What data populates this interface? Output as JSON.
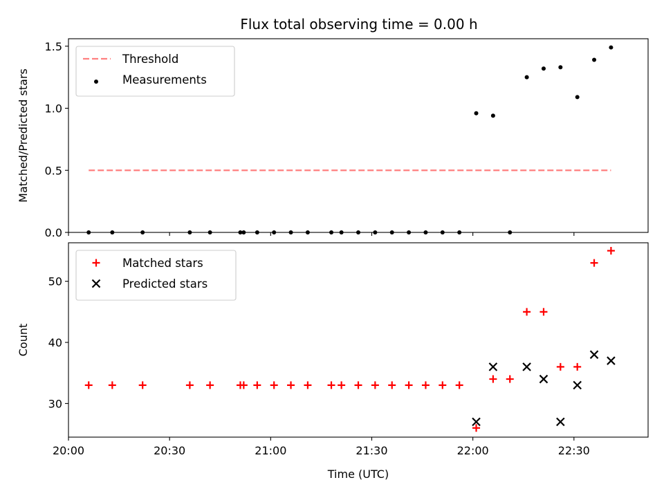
{
  "figure": {
    "title": "Flux total observing time = 0.00 h"
  },
  "chart_data": [
    {
      "type": "scatter",
      "ylabel": "Matched/Predicted stars",
      "xlim": [
        "20:00",
        "22:52"
      ],
      "ylim": [
        0,
        1.56
      ],
      "yticks": [
        "0.0",
        "0.5",
        "1.0",
        "1.5"
      ],
      "legend_position": "top-left",
      "threshold": {
        "name": "Threshold",
        "value": 0.5,
        "x_start": "20:06",
        "x_end": "22:41",
        "color": "#ff7f7f"
      },
      "series": [
        {
          "name": "Measurements",
          "color": "#000000",
          "points": [
            [
              "20:06",
              0
            ],
            [
              "20:13",
              0
            ],
            [
              "20:22",
              0
            ],
            [
              "20:36",
              0
            ],
            [
              "20:42",
              0
            ],
            [
              "20:51",
              0
            ],
            [
              "20:52",
              0
            ],
            [
              "20:56",
              0
            ],
            [
              "21:01",
              0
            ],
            [
              "21:06",
              0
            ],
            [
              "21:11",
              0
            ],
            [
              "21:18",
              0
            ],
            [
              "21:21",
              0
            ],
            [
              "21:26",
              0
            ],
            [
              "21:31",
              0
            ],
            [
              "21:36",
              0
            ],
            [
              "21:41",
              0
            ],
            [
              "21:46",
              0
            ],
            [
              "21:51",
              0
            ],
            [
              "21:56",
              0
            ],
            [
              "22:01",
              0.96
            ],
            [
              "22:06",
              0.94
            ],
            [
              "22:11",
              0
            ],
            [
              "22:16",
              1.25
            ],
            [
              "22:21",
              1.32
            ],
            [
              "22:26",
              1.33
            ],
            [
              "22:31",
              1.09
            ],
            [
              "22:36",
              1.39
            ],
            [
              "22:41",
              1.49
            ]
          ]
        }
      ]
    },
    {
      "type": "scatter",
      "xlabel": "Time (UTC)",
      "ylabel": "Count",
      "xlim": [
        "20:00",
        "22:52"
      ],
      "ylim": [
        24.5,
        56.3
      ],
      "xticks": [
        "20:00",
        "20:30",
        "21:00",
        "21:30",
        "22:00",
        "22:30"
      ],
      "yticks": [
        "30",
        "40",
        "50"
      ],
      "legend_position": "top-left",
      "series": [
        {
          "name": "Matched stars",
          "marker": "plus",
          "color": "#ff0000",
          "points": [
            [
              "20:06",
              33
            ],
            [
              "20:13",
              33
            ],
            [
              "20:22",
              33
            ],
            [
              "20:36",
              33
            ],
            [
              "20:42",
              33
            ],
            [
              "20:51",
              33
            ],
            [
              "20:52",
              33
            ],
            [
              "20:56",
              33
            ],
            [
              "21:01",
              33
            ],
            [
              "21:06",
              33
            ],
            [
              "21:11",
              33
            ],
            [
              "21:18",
              33
            ],
            [
              "21:21",
              33
            ],
            [
              "21:26",
              33
            ],
            [
              "21:31",
              33
            ],
            [
              "21:36",
              33
            ],
            [
              "21:41",
              33
            ],
            [
              "21:46",
              33
            ],
            [
              "21:51",
              33
            ],
            [
              "21:56",
              33
            ],
            [
              "22:01",
              26
            ],
            [
              "22:06",
              34
            ],
            [
              "22:11",
              34
            ],
            [
              "22:16",
              45
            ],
            [
              "22:21",
              45
            ],
            [
              "22:26",
              36
            ],
            [
              "22:31",
              36
            ],
            [
              "22:36",
              53
            ],
            [
              "22:41",
              55
            ]
          ]
        },
        {
          "name": "Predicted stars",
          "marker": "x",
          "color": "#000000",
          "points": [
            [
              "22:01",
              27
            ],
            [
              "22:06",
              36
            ],
            [
              "22:16",
              36
            ],
            [
              "22:21",
              34
            ],
            [
              "22:26",
              27
            ],
            [
              "22:31",
              33
            ],
            [
              "22:36",
              38
            ],
            [
              "22:41",
              37
            ]
          ]
        }
      ]
    }
  ]
}
